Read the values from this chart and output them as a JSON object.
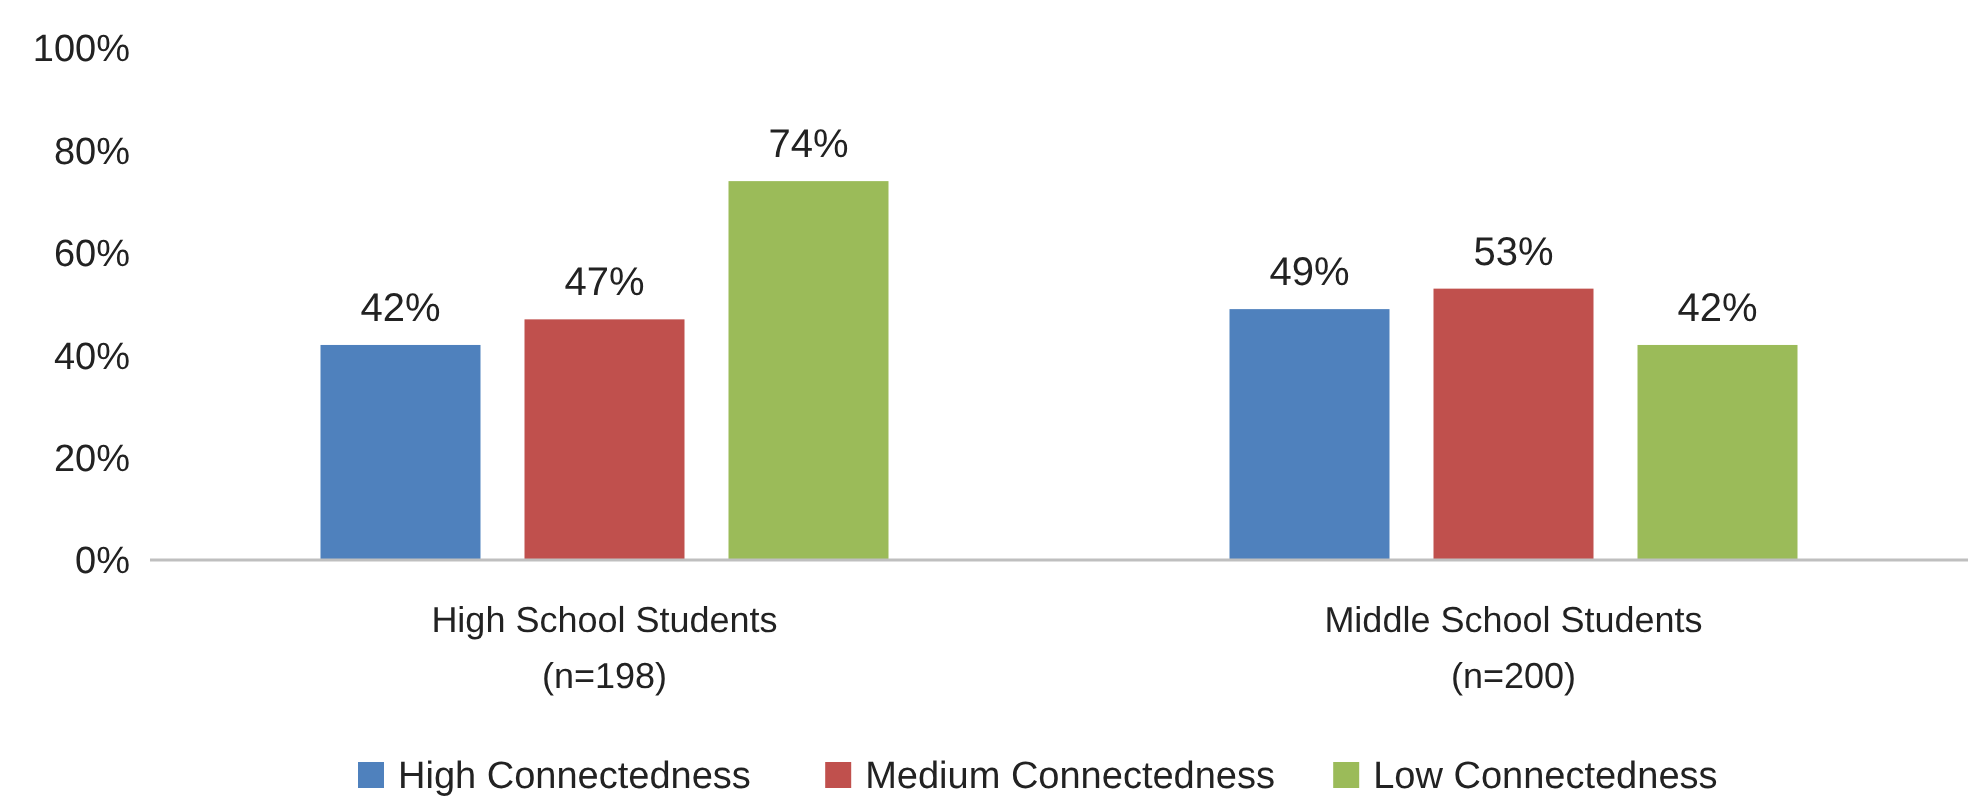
{
  "chart_data": {
    "type": "bar",
    "categories": [
      "High School Students\n(n=198)",
      "Middle School Students\n(n=200)"
    ],
    "series": [
      {
        "name": "High Connectedness",
        "color": "#4f81bd",
        "values": [
          42,
          49
        ],
        "value_labels": [
          "42%",
          "49%"
        ]
      },
      {
        "name": "Medium Connectedness",
        "color": "#c0504d",
        "values": [
          47,
          53
        ],
        "value_labels": [
          "47%",
          "53%"
        ]
      },
      {
        "name": "Low Connectedness",
        "color": "#9bbb59",
        "values": [
          74,
          42
        ],
        "value_labels": [
          "74%",
          "42%"
        ]
      }
    ],
    "ylim": [
      0,
      100
    ],
    "yticks": [
      {
        "value": 0,
        "label": "0%"
      },
      {
        "value": 20,
        "label": "20%"
      },
      {
        "value": 40,
        "label": "40%"
      },
      {
        "value": 60,
        "label": "60%"
      },
      {
        "value": 80,
        "label": "80%"
      },
      {
        "value": 100,
        "label": "100%"
      }
    ],
    "grid": false,
    "legend": "bottom"
  }
}
